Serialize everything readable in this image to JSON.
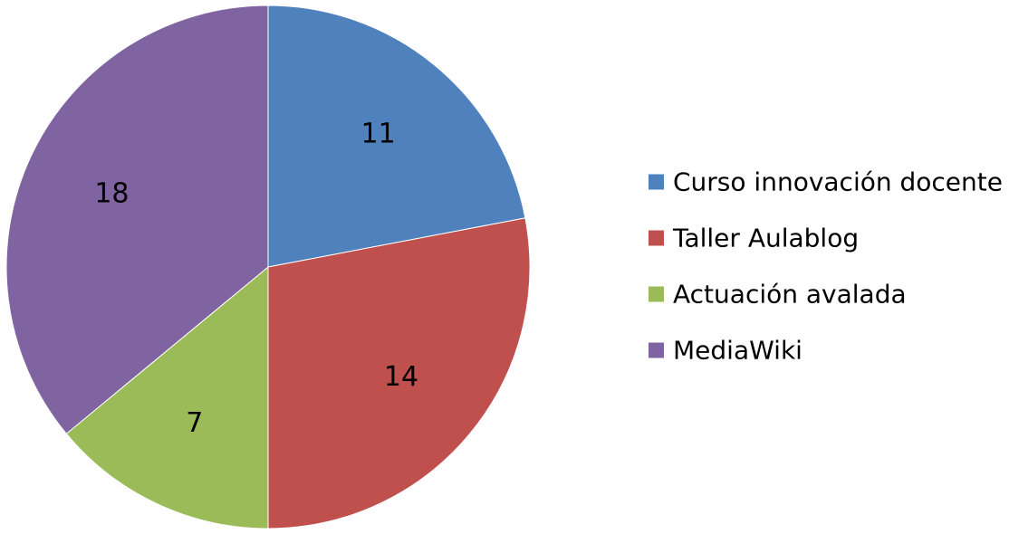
{
  "chart_data": {
    "type": "pie",
    "title": "",
    "categories": [
      "Curso innovación docente",
      "Taller Aulablog",
      "Actuación avalada",
      "MediaWiki"
    ],
    "values": [
      11,
      14,
      7,
      18
    ],
    "colors": [
      "#4F81BD",
      "#C0504D",
      "#9BBB59",
      "#8064A2"
    ],
    "start_angle": "12 o'clock",
    "direction": "clockwise",
    "data_labels": true,
    "legend_position": "right"
  }
}
